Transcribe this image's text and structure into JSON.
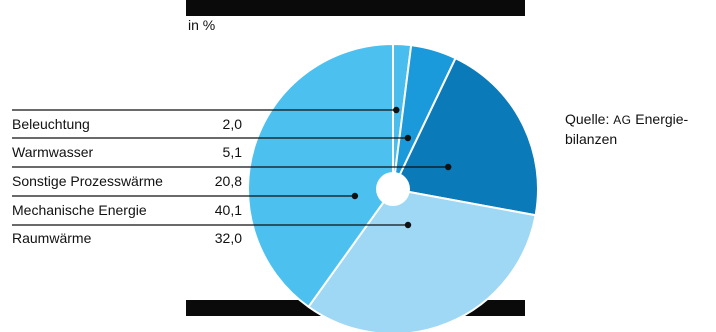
{
  "unit_label": "in %",
  "source": {
    "prefix": "Quelle: ",
    "org": "AG",
    "line1_rest": " Energie-",
    "line2": "bilanzen"
  },
  "colors": {
    "background": "#ffffff",
    "bars": "#0a0a0a",
    "Beleuchtung": "#48bdee",
    "Warmwasser": "#1a9ada",
    "Sonstige Prozesswärme": "#0a7ab8",
    "Mechanische Energie": "#4cc1f0",
    "Raumwärme": "#9ed8f5"
  },
  "chart_data": {
    "type": "pie",
    "title": "",
    "unit": "in %",
    "start": "12 o'clock",
    "direction": "clockwise",
    "donut_hole": true,
    "legend_position": "left",
    "categories": [
      "Beleuchtung",
      "Warmwasser",
      "Sonstige Prozesswärme",
      "Raumwärme",
      "Mechanische Energie"
    ],
    "values": [
      2.0,
      5.1,
      20.8,
      32.0,
      40.1
    ],
    "labels": [
      {
        "name": "Beleuchtung",
        "value": "2,0"
      },
      {
        "name": "Warmwasser",
        "value": "5,1"
      },
      {
        "name": "Sonstige Prozesswärme",
        "value": "20,8"
      },
      {
        "name": "Mechanische Energie",
        "value": "40,1"
      },
      {
        "name": "Raumwärme",
        "value": "32,0"
      }
    ]
  }
}
